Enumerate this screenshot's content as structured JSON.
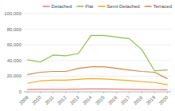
{
  "chart_data": {
    "type": "line",
    "x": [
      2009,
      2010,
      2011,
      2012,
      2013,
      2014,
      2015,
      2016,
      2017,
      2018,
      2019,
      2020
    ],
    "series": [
      {
        "name": "Detached",
        "color": "#e87c7c",
        "values": [
          3000,
          3200,
          3100,
          3200,
          3500,
          3800,
          3800,
          3500,
          3200,
          3000,
          2800,
          2600
        ]
      },
      {
        "name": "Flat",
        "color": "#8fbe50",
        "values": [
          41000,
          38000,
          47000,
          46000,
          49000,
          72000,
          72000,
          70000,
          68000,
          54000,
          27000,
          28000
        ]
      },
      {
        "name": "Semi-Detached",
        "color": "#f5a623",
        "values": [
          11000,
          14000,
          15000,
          15000,
          16000,
          17000,
          16500,
          15500,
          14500,
          13000,
          12000,
          9000
        ]
      },
      {
        "name": "Terraced",
        "color": "#d4884a",
        "values": [
          22000,
          25000,
          26000,
          26000,
          30000,
          32000,
          32000,
          30000,
          28000,
          26000,
          25000,
          17000
        ]
      }
    ],
    "xlim": [
      2008.7,
      2020.3
    ],
    "xticks": [
      2009,
      2010,
      2011,
      2012,
      2013,
      2014,
      2015,
      2016,
      2017,
      2018,
      2019,
      2020
    ],
    "ylim": [
      0,
      100000
    ],
    "yticks": [
      0,
      {
        "value": 20000,
        "label": "20,000"
      },
      {
        "value": 40000,
        "label": "40,000"
      },
      {
        "value": 60000,
        "label": "60,000"
      },
      {
        "value": 80000,
        "label": "80,000"
      },
      {
        "value": 100000,
        "label": "100,000"
      }
    ],
    "grid": true,
    "legend": "upper right"
  }
}
